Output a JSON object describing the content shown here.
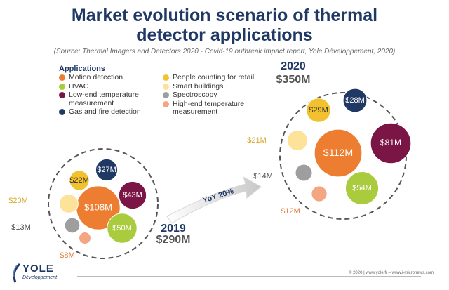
{
  "chart_data": {
    "type": "bubble",
    "title": "Market evolution scenario of thermal detector applications",
    "subtitle": "(Source: Thermal Imagers and Detectors 2020 - Covid-19 outbreak impact report, Yole Développement, 2020)",
    "legend_title": "Applications",
    "legend_placement": "top-left",
    "categories": [
      {
        "name": "Motion detection",
        "color": "#ed7d31"
      },
      {
        "name": "HVAC",
        "color": "#a9cb3d"
      },
      {
        "name": "Low-end temperature measurement",
        "color": "#7b1545"
      },
      {
        "name": "Gas and fire detection",
        "color": "#1f3864"
      },
      {
        "name": "People counting for retail",
        "color": "#f2c12e"
      },
      {
        "name": "Smart buildings",
        "color": "#fde39a"
      },
      {
        "name": "Spectroscopy",
        "color": "#9e9e9e"
      },
      {
        "name": "High-end temperature measurement",
        "color": "#f4a582"
      }
    ],
    "series": [
      {
        "year": "2019",
        "total": "$290M",
        "labels": [
          "$108M",
          "$50M",
          "$43M",
          "$27M",
          "$22M",
          "$20M",
          "$13M",
          "$8M"
        ],
        "values": [
          108,
          50,
          43,
          27,
          22,
          20,
          13,
          8
        ]
      },
      {
        "year": "2020",
        "total": "$350M",
        "labels": [
          "$112M",
          "$54M",
          "$81M",
          "$28M",
          "$29M",
          "$21M",
          "$14M",
          "$12M"
        ],
        "values": [
          112,
          54,
          81,
          28,
          29,
          21,
          14,
          12
        ]
      }
    ],
    "growth_label": "YoY 20%"
  },
  "footer": {
    "copyright": "© 2020 | www.yole.fr – www.i-micronews.com",
    "logo_name": "YOLE",
    "logo_sub": "Développement"
  }
}
